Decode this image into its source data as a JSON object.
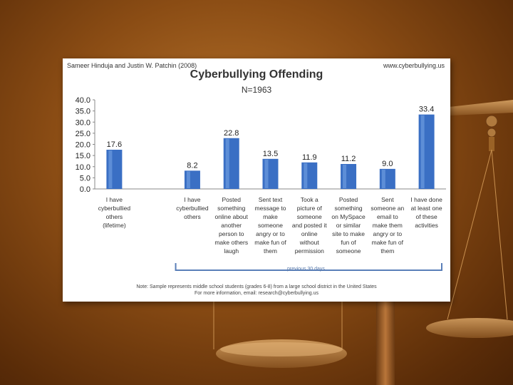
{
  "header": {
    "author": "Sameer Hinduja and Justin W. Patchin (2008)",
    "site": "www.cyberbullying.us"
  },
  "chart_data": {
    "type": "bar",
    "title": "Cyberbullying Offending",
    "subtitle": "N=1963",
    "categories": [
      "I have cyberbullied others (lifetime)",
      "",
      "I have cyberbullied others",
      "Posted something online about another person to make others laugh",
      "Sent text message to make someone angry or to make fun of them",
      "Took a picture of someone and posted it online without permission",
      "Posted something on MySpace or similar site to make fun of someone",
      "Sent someone an email to make them angry or to make fun of them",
      "I have done at least one of these activities"
    ],
    "category_lines": [
      [
        "I have",
        "cyberbullied",
        "others",
        "(lifetime)"
      ],
      [],
      [
        "I have",
        "cyberbullied",
        "others"
      ],
      [
        "Posted",
        "something",
        "online about",
        "another",
        "person to",
        "make others",
        "laugh"
      ],
      [
        "Sent text",
        "message to",
        "make",
        "someone",
        "angry or to",
        "make fun of",
        "them"
      ],
      [
        "Took a",
        "picture of",
        "someone",
        "and posted it",
        "online",
        "without",
        "permission"
      ],
      [
        "Posted",
        "something",
        "on MySpace",
        "or similar",
        "site to make",
        "fun of",
        "someone"
      ],
      [
        "Sent",
        "someone an",
        "email to",
        "make them",
        "angry or to",
        "make fun of",
        "them"
      ],
      [
        "I have done",
        "at least one",
        "of these",
        "activities"
      ]
    ],
    "values": [
      17.6,
      null,
      8.2,
      22.8,
      13.5,
      11.9,
      11.2,
      9.0,
      33.4
    ],
    "value_labels": [
      "17.6",
      "",
      "8.2",
      "22.8",
      "13.5",
      "11.9",
      "11.2",
      "9.0",
      "33.4"
    ],
    "ylim": [
      0,
      40
    ],
    "yticks": [
      "0.0",
      "5.0",
      "10.0",
      "15.0",
      "20.0",
      "25.0",
      "30.0",
      "35.0",
      "40.0"
    ],
    "bar_color": "#3a6fc4",
    "grid": false,
    "bracket_label": "previous 30 days"
  },
  "note": {
    "line1": "Note: Sample represents middle school students (grades 6-8) from a large school district in the United States",
    "line2": "For more information, email: research@cyberbullying.us"
  }
}
